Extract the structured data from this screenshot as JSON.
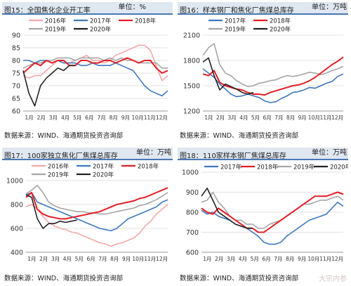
{
  "panels": [
    {
      "title": "图15：全国焦化企业开工率",
      "unit": "单位：%",
      "source": "数据来源：WIND、海通期货投资咨询部"
    },
    {
      "title": "图16：样本钢厂和焦化厂焦煤总库存",
      "unit": "单位：万吨",
      "source": "数据来源：WIND、海通期货投资咨询部"
    },
    {
      "title": "图17：100家独立焦化厂焦煤总库存",
      "unit": "单位：万吨",
      "source": "数据来源：WIND、海通期货投资咨询部"
    },
    {
      "title": "图18：110家样本钢厂焦煤总库存",
      "unit": "单位：万吨",
      "source": "数据来源：WIND、海通期货投资咨询部"
    }
  ],
  "watermark": "大宗内参",
  "colors": {
    "2016年": "#f4a8a8",
    "2017年": "#3d78c0",
    "2018年": "#e41e26",
    "2019年": "#a6a6a6",
    "2020年": "#222222"
  },
  "chart_data": [
    {
      "type": "line",
      "x_ticks": [
        "1月",
        "2月",
        "3月",
        "4月",
        "5月",
        "6月",
        "7月",
        "8月",
        "9月",
        "10月",
        "11月",
        "12月"
      ],
      "ylim": [
        60,
        90
      ],
      "yticks": [
        60,
        65,
        70,
        75,
        80,
        85,
        90
      ],
      "legend": [
        [
          "2016年",
          "2017年",
          "2018年"
        ],
        [
          "2019年",
          "2020年"
        ]
      ],
      "series": [
        {
          "name": "2016年",
          "values": [
            74,
            73,
            74,
            74,
            76,
            78,
            80,
            79,
            79,
            80,
            81,
            82,
            80,
            80,
            79,
            80,
            82,
            83,
            84,
            85,
            86,
            86,
            84,
            78,
            72,
            74
          ]
        },
        {
          "name": "2017年",
          "values": [
            80,
            80,
            79,
            80,
            80,
            79,
            80,
            79,
            79,
            79,
            78,
            78,
            79,
            78,
            78,
            78,
            79,
            78,
            77,
            76,
            73,
            70,
            68,
            67,
            66,
            68
          ]
        },
        {
          "name": "2018年",
          "values": [
            75,
            77,
            79,
            78,
            80,
            79,
            80,
            80,
            78,
            78,
            80,
            80,
            79,
            79,
            80,
            80,
            79,
            80,
            81,
            80,
            79,
            80,
            80,
            77,
            75,
            76
          ]
        },
        {
          "name": "2019年",
          "values": [
            77,
            78,
            79,
            79,
            80,
            80,
            81,
            81,
            81,
            80,
            81,
            81,
            81,
            81,
            80,
            81,
            80,
            81,
            80,
            80,
            79,
            79,
            79,
            79,
            77,
            77
          ]
        },
        {
          "name": "2020年",
          "values": [
            76,
            67,
            62,
            70,
            73,
            75,
            77,
            76,
            78,
            78
          ]
        }
      ]
    },
    {
      "type": "line",
      "x_ticks": [
        "1月",
        "2月",
        "3月",
        "4月",
        "5月",
        "6月",
        "7月",
        "8月",
        "9月",
        "10月",
        "11月",
        "12月"
      ],
      "ylim": [
        1200,
        2100
      ],
      "yticks": [
        1200,
        1500,
        1800,
        2100
      ],
      "legend": [
        [
          "2017年",
          "2018年"
        ],
        [
          "2019年",
          "2020年"
        ]
      ],
      "series": [
        {
          "name": "2017年",
          "values": [
            1700,
            1650,
            1600,
            1520,
            1460,
            1400,
            1370,
            1380,
            1400,
            1380,
            1360,
            1320,
            1300,
            1310,
            1350,
            1380,
            1420,
            1430,
            1450,
            1480,
            1470,
            1500,
            1530,
            1550,
            1610,
            1640
          ]
        },
        {
          "name": "2018年",
          "values": [
            1640,
            1620,
            1680,
            1540,
            1500,
            1480,
            1460,
            1450,
            1420,
            1400,
            1400,
            1390,
            1420,
            1440,
            1460,
            1480,
            1500,
            1510,
            1530,
            1560,
            1600,
            1650,
            1700,
            1750,
            1790,
            1840
          ]
        },
        {
          "name": "2019年",
          "values": [
            1860,
            1950,
            2000,
            1750,
            1650,
            1620,
            1560,
            1520,
            1490,
            1500,
            1530,
            1540,
            1560,
            1570,
            1600,
            1620,
            1610,
            1620,
            1640,
            1660,
            1650,
            1630,
            1650,
            1680,
            1700,
            1730
          ]
        },
        {
          "name": "2020年",
          "values": [
            1780,
            1830,
            1620,
            1450,
            1520,
            1490,
            1460,
            1420,
            1400,
            1420
          ]
        }
      ]
    },
    {
      "type": "line",
      "x_ticks": [
        "1月",
        "2月",
        "3月",
        "4月",
        "5月",
        "6月",
        "7月",
        "8月",
        "9月",
        "10月",
        "11月",
        "12月"
      ],
      "ylim": [
        400,
        1000
      ],
      "yticks": [
        400,
        600,
        800,
        1000
      ],
      "legend": [
        [
          "2016年",
          "2017年",
          "2018年"
        ],
        [
          "2019年",
          "2020年"
        ]
      ],
      "series": [
        {
          "name": "2016年",
          "values": [
            780,
            800,
            760,
            700,
            650,
            620,
            600,
            590,
            570,
            560,
            540,
            520,
            500,
            480,
            470,
            450,
            470,
            480,
            500,
            520,
            560,
            620,
            660,
            720,
            760,
            800
          ]
        },
        {
          "name": "2017年",
          "values": [
            880,
            900,
            820,
            800,
            780,
            760,
            740,
            720,
            700,
            680,
            660,
            640,
            620,
            600,
            590,
            580,
            600,
            640,
            680,
            700,
            720,
            740,
            760,
            780,
            820,
            840
          ]
        },
        {
          "name": "2018年",
          "values": [
            860,
            900,
            760,
            720,
            700,
            690,
            680,
            680,
            690,
            700,
            710,
            720,
            730,
            740,
            760,
            780,
            800,
            810,
            820,
            830,
            850,
            860,
            880,
            900,
            920,
            940
          ]
        },
        {
          "name": "2019年",
          "values": [
            890,
            920,
            960,
            900,
            820,
            790,
            770,
            760,
            750,
            740,
            740,
            730,
            730,
            720,
            720,
            730,
            740,
            750,
            760,
            770,
            790,
            800,
            820,
            840,
            870,
            900
          ]
        },
        {
          "name": "2020年",
          "values": [
            880,
            860,
            680,
            600,
            640,
            640,
            660,
            650,
            660,
            670
          ]
        }
      ]
    },
    {
      "type": "line",
      "x_ticks": [
        "1月",
        "2月",
        "3月",
        "4月",
        "5月",
        "6月",
        "7月",
        "8月",
        "9月",
        "10月",
        "11月",
        "12月"
      ],
      "ylim": [
        600,
        1000
      ],
      "yticks": [
        600,
        700,
        800,
        900,
        1000
      ],
      "legend": [
        [
          "2017年",
          "2018年",
          "2019年",
          "2020年"
        ]
      ],
      "series": [
        {
          "name": "2017年",
          "values": [
            810,
            790,
            800,
            780,
            770,
            760,
            740,
            730,
            720,
            700,
            680,
            650,
            640,
            640,
            650,
            680,
            700,
            720,
            740,
            760,
            770,
            780,
            790,
            820,
            850,
            830
          ]
        },
        {
          "name": "2018年",
          "values": [
            820,
            800,
            790,
            820,
            800,
            780,
            760,
            740,
            720,
            720,
            700,
            700,
            720,
            740,
            760,
            780,
            800,
            820,
            840,
            860,
            880,
            880,
            880,
            890,
            900,
            890
          ]
        },
        {
          "name": "2019年",
          "values": [
            850,
            860,
            900,
            850,
            820,
            780,
            760,
            760,
            740,
            740,
            720,
            720,
            740,
            750,
            760,
            780,
            800,
            820,
            840,
            840,
            850,
            860,
            860,
            870,
            880,
            860
          ]
        },
        {
          "name": "2020年",
          "values": [
            880,
            920,
            860,
            800,
            780,
            760,
            740,
            730,
            720,
            720
          ]
        }
      ]
    }
  ]
}
